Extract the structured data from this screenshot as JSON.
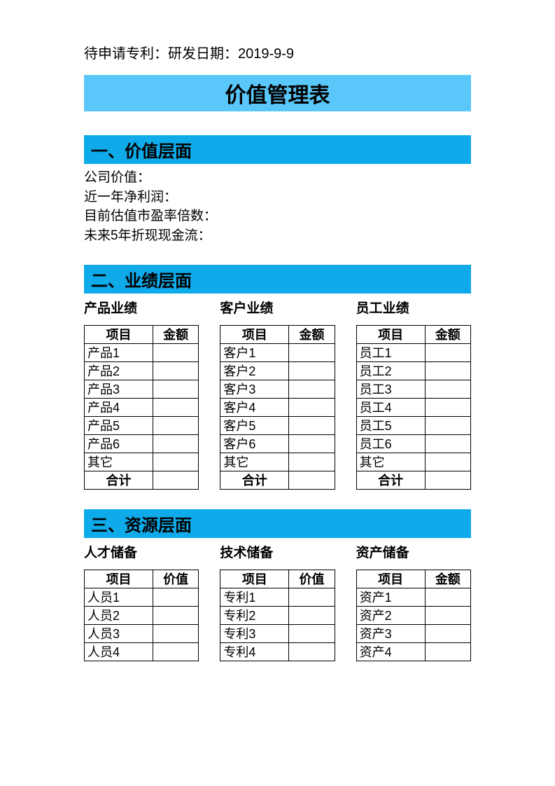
{
  "header_text": "待申请专利：研发日期：2019-9-9",
  "title": "价值管理表",
  "colors": {
    "title_banner": "#59c7fa",
    "section_header": "#0eaae9",
    "text": "#000000",
    "background": "#ffffff",
    "border": "#000000"
  },
  "sections": {
    "one": {
      "header": "一、价值层面",
      "lines": [
        "公司价值：",
        "近一年净利润：",
        "目前估值市盈率倍数：",
        "未来5年折现现金流："
      ]
    },
    "two": {
      "header": "二、业绩层面",
      "tables": [
        {
          "title": "产品业绩",
          "columns": [
            "项目",
            "金额"
          ],
          "rows": [
            "产品1",
            "产品2",
            "产品3",
            "产品4",
            "产品5",
            "产品6",
            "其它"
          ],
          "total": "合计"
        },
        {
          "title": "客户业绩",
          "columns": [
            "项目",
            "金额"
          ],
          "rows": [
            "客户1",
            "客户2",
            "客户3",
            "客户4",
            "客户5",
            "客户6",
            "其它"
          ],
          "total": "合计"
        },
        {
          "title": "员工业绩",
          "columns": [
            "项目",
            "金额"
          ],
          "rows": [
            "员工1",
            "员工2",
            "员工3",
            "员工4",
            "员工5",
            "员工6",
            "其它"
          ],
          "total": "合计"
        }
      ]
    },
    "three": {
      "header": "三、资源层面",
      "tables": [
        {
          "title": "人才储备",
          "columns": [
            "项目",
            "价值"
          ],
          "rows": [
            "人员1",
            "人员2",
            "人员3",
            "人员4"
          ]
        },
        {
          "title": "技术储备",
          "columns": [
            "项目",
            "价值"
          ],
          "rows": [
            "专利1",
            "专利2",
            "专利3",
            "专利4"
          ]
        },
        {
          "title": "资产储备",
          "columns": [
            "项目",
            "金额"
          ],
          "rows": [
            "资产1",
            "资产2",
            "资产3",
            "资产4"
          ]
        }
      ]
    }
  }
}
